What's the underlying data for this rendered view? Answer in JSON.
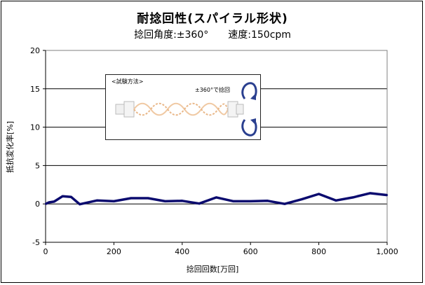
{
  "title": "耐捻回性(スパイラル形状)",
  "subtitle_left": "捻回角度:±360°",
  "subtitle_right": "速度:150cpm",
  "inset": {
    "title": "<試験方法>",
    "angle_label": "±360°で捻回"
  },
  "chart_data": {
    "type": "line",
    "xlabel": "捻回回数[万回]",
    "ylabel": "抵抗変化率[%]",
    "xlim": [
      0,
      1000
    ],
    "ylim": [
      -5,
      20
    ],
    "xticks": [
      0,
      200,
      400,
      600,
      800,
      1000
    ],
    "xtick_labels": [
      "0",
      "200",
      "400",
      "600",
      "800",
      "1,000"
    ],
    "yticks": [
      -5,
      0,
      5,
      10,
      15,
      20
    ],
    "ytick_labels": [
      "-5",
      "0",
      "5",
      "10",
      "15",
      "20"
    ],
    "grid": "horizontal",
    "line_color": "#0b0b6f",
    "series": [
      {
        "x": [
          0,
          10,
          25,
          50,
          75,
          100,
          150,
          200,
          250,
          300,
          350,
          400,
          450,
          500,
          550,
          600,
          650,
          700,
          750,
          800,
          850,
          900,
          950,
          1000
        ],
        "y": [
          0,
          0.2,
          0.3,
          1.0,
          0.9,
          -0.05,
          0.45,
          0.35,
          0.75,
          0.75,
          0.35,
          0.4,
          0.05,
          0.85,
          0.35,
          0.35,
          0.4,
          0.0,
          0.6,
          1.3,
          0.45,
          0.85,
          1.4,
          1.15
        ]
      }
    ]
  }
}
